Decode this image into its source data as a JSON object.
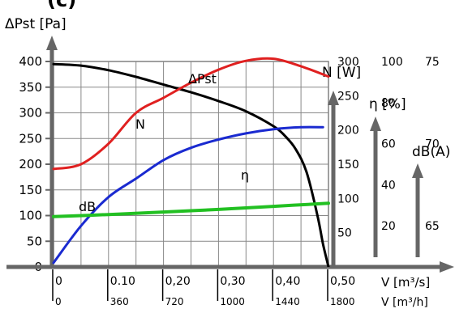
{
  "chart_data": {
    "type": "line",
    "title_fragment": "(c)",
    "y_title": "ΔPst [Pa]",
    "y_ticks": [
      "400",
      "350",
      "300",
      "250",
      "200",
      "150",
      "100",
      "50",
      "0"
    ],
    "y_range": [
      0,
      400
    ],
    "x_range": [
      0,
      0.5
    ],
    "x_ticks_flow_m3s": [
      "0",
      "0.10",
      "0,20",
      "0,30",
      "0,40",
      "0,50"
    ],
    "x_ticks_flow_m3h": [
      "0",
      "360",
      "720",
      "1000",
      "1440",
      "1800"
    ],
    "x_label_m3s": "V [m³/s]",
    "x_label_m3h": "V [m³/h]",
    "grid": true,
    "secondary_axes": {
      "power": {
        "label": "N [W]",
        "ticks": [
          "300",
          "250",
          "200",
          "150",
          "100",
          "50"
        ],
        "range": [
          0,
          300
        ]
      },
      "efficiency": {
        "label": "η [%]",
        "ticks": [
          "100",
          "80",
          "60",
          "40",
          "20"
        ],
        "range": [
          0,
          100
        ]
      },
      "sound": {
        "label": "dB(A)",
        "ticks": [
          "75",
          "70",
          "65"
        ],
        "range": [
          62.5,
          75
        ]
      }
    },
    "series": [
      {
        "name": "ΔPst",
        "color": "#000000",
        "axis": "pressure",
        "x": [
          0,
          0.05,
          0.1,
          0.15,
          0.2,
          0.25,
          0.3,
          0.35,
          0.4,
          0.42,
          0.44,
          0.46,
          0.48,
          0.49,
          0.5
        ],
        "values": [
          395,
          392,
          383,
          370,
          355,
          340,
          323,
          303,
          274,
          256,
          230,
          185,
          100,
          45,
          0
        ]
      },
      {
        "name": "N",
        "color": "#e02020",
        "axis": "power",
        "x": [
          0,
          0.05,
          0.1,
          0.15,
          0.2,
          0.25,
          0.3,
          0.35,
          0.4,
          0.45,
          0.5
        ],
        "values": [
          143,
          150,
          180,
          225,
          247,
          269,
          288,
          301,
          304,
          293,
          278
        ]
      },
      {
        "name": "η",
        "color": "#1a2ad0",
        "axis": "efficiency",
        "x": [
          0,
          0.05,
          0.1,
          0.15,
          0.2,
          0.25,
          0.3,
          0.35,
          0.4,
          0.45,
          0.49
        ],
        "values": [
          2,
          20,
          34,
          43,
          52,
          58,
          62,
          65,
          67,
          68,
          68
        ]
      },
      {
        "name": "dB",
        "color": "#22c022",
        "axis": "pressure",
        "x": [
          0,
          0.1,
          0.2,
          0.3,
          0.4,
          0.5
        ],
        "values": [
          98,
          102,
          107,
          112,
          118,
          124
        ]
      }
    ],
    "series_labels": [
      "ΔPst",
      "N",
      "η",
      "dB"
    ]
  }
}
